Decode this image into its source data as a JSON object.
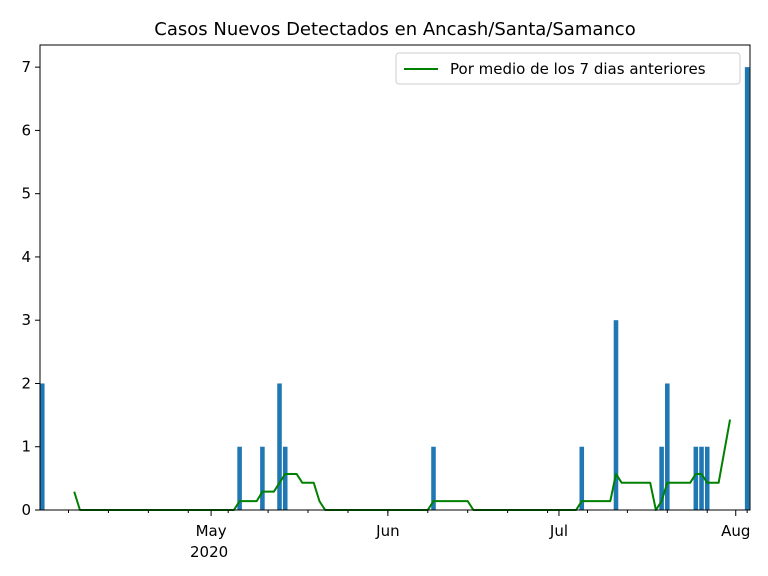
{
  "chart_data": {
    "type": "bar",
    "title": "Casos Nuevos Detectados en Ancash/Santa/Samanco",
    "xlabel": "",
    "ylabel": "",
    "x_start": "2020-04-01",
    "x_end": "2020-08-03",
    "ylim": [
      0,
      7.35
    ],
    "yticks": [
      0,
      1,
      2,
      3,
      4,
      5,
      6,
      7
    ],
    "xticks": [
      {
        "date": "2020-05-01",
        "label": "May",
        "sublabel": "2020"
      },
      {
        "date": "2020-06-01",
        "label": "Jun",
        "sublabel": ""
      },
      {
        "date": "2020-07-01",
        "label": "Jul",
        "sublabel": ""
      },
      {
        "date": "2020-08-01",
        "label": "Aug",
        "sublabel": ""
      }
    ],
    "legend_position": "top-right",
    "bar_color": "#1f77b4",
    "line_color": "#008000",
    "bars": [
      {
        "date": "2020-04-01",
        "value": 2
      },
      {
        "date": "2020-05-06",
        "value": 1
      },
      {
        "date": "2020-05-10",
        "value": 1
      },
      {
        "date": "2020-05-13",
        "value": 2
      },
      {
        "date": "2020-05-14",
        "value": 1
      },
      {
        "date": "2020-06-09",
        "value": 1
      },
      {
        "date": "2020-07-05",
        "value": 1
      },
      {
        "date": "2020-07-11",
        "value": 3
      },
      {
        "date": "2020-07-19",
        "value": 1
      },
      {
        "date": "2020-07-20",
        "value": 2
      },
      {
        "date": "2020-07-25",
        "value": 1
      },
      {
        "date": "2020-07-26",
        "value": 1
      },
      {
        "date": "2020-07-27",
        "value": 1
      },
      {
        "date": "2020-08-03",
        "value": 7
      }
    ],
    "series": [
      {
        "name": "Por medio de los 7 dias anteriores",
        "points": [
          [
            "2020-04-07",
            0.29
          ],
          [
            "2020-04-08",
            0
          ],
          [
            "2020-05-05",
            0
          ],
          [
            "2020-05-06",
            0.14
          ],
          [
            "2020-05-09",
            0.14
          ],
          [
            "2020-05-10",
            0.29
          ],
          [
            "2020-05-12",
            0.29
          ],
          [
            "2020-05-13",
            0.43
          ],
          [
            "2020-05-14",
            0.57
          ],
          [
            "2020-05-16",
            0.57
          ],
          [
            "2020-05-17",
            0.43
          ],
          [
            "2020-05-19",
            0.43
          ],
          [
            "2020-05-20",
            0.14
          ],
          [
            "2020-05-21",
            0
          ],
          [
            "2020-06-08",
            0
          ],
          [
            "2020-06-09",
            0.14
          ],
          [
            "2020-06-15",
            0.14
          ],
          [
            "2020-06-16",
            0
          ],
          [
            "2020-07-04",
            0
          ],
          [
            "2020-07-05",
            0.14
          ],
          [
            "2020-07-10",
            0.14
          ],
          [
            "2020-07-11",
            0.57
          ],
          [
            "2020-07-12",
            0.43
          ],
          [
            "2020-07-17",
            0.43
          ],
          [
            "2020-07-18",
            0
          ],
          [
            "2020-07-19",
            0.14
          ],
          [
            "2020-07-20",
            0.43
          ],
          [
            "2020-07-24",
            0.43
          ],
          [
            "2020-07-25",
            0.57
          ],
          [
            "2020-07-26",
            0.57
          ],
          [
            "2020-07-27",
            0.43
          ],
          [
            "2020-07-29",
            0.43
          ],
          [
            "2020-07-31",
            1.43
          ]
        ]
      }
    ]
  }
}
